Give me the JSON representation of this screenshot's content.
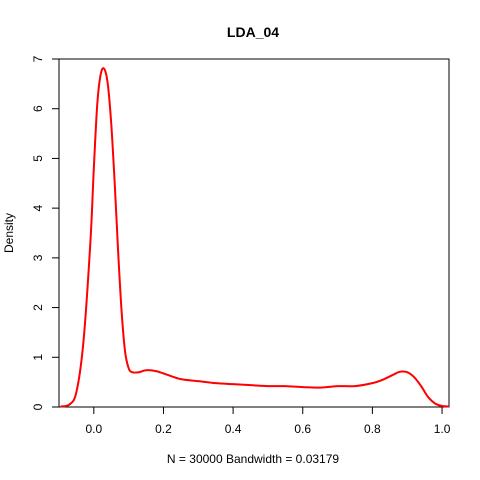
{
  "chart_data": {
    "type": "line",
    "title": "LDA_04",
    "xlabel": "N = 30000   Bandwidth = 0.03179",
    "ylabel": "Density",
    "xlim": [
      -0.1,
      1.02
    ],
    "ylim": [
      0,
      7
    ],
    "x_ticks": [
      0.0,
      0.2,
      0.4,
      0.6,
      0.8,
      1.0
    ],
    "x_tick_labels": [
      "0.0",
      "0.2",
      "0.4",
      "0.6",
      "0.8",
      "1.0"
    ],
    "y_ticks": [
      0,
      1,
      2,
      3,
      4,
      5,
      6,
      7
    ],
    "y_tick_labels": [
      "0",
      "1",
      "2",
      "3",
      "4",
      "5",
      "6",
      "7"
    ],
    "grid": false,
    "series": [
      {
        "color": "#ff0000",
        "x": [
          -0.095,
          -0.07,
          -0.05,
          -0.03,
          -0.01,
          0.0,
          0.01,
          0.02,
          0.03,
          0.04,
          0.05,
          0.06,
          0.07,
          0.08,
          0.09,
          0.1,
          0.11,
          0.13,
          0.15,
          0.18,
          0.21,
          0.25,
          0.3,
          0.35,
          0.4,
          0.45,
          0.5,
          0.55,
          0.6,
          0.65,
          0.7,
          0.75,
          0.8,
          0.83,
          0.86,
          0.88,
          0.9,
          0.92,
          0.94,
          0.96,
          0.98,
          1.0,
          1.02
        ],
        "y": [
          0.01,
          0.05,
          0.3,
          1.3,
          3.3,
          4.8,
          6.1,
          6.7,
          6.8,
          6.5,
          5.7,
          4.5,
          3.1,
          1.9,
          1.1,
          0.78,
          0.7,
          0.7,
          0.74,
          0.72,
          0.65,
          0.56,
          0.52,
          0.48,
          0.46,
          0.44,
          0.42,
          0.42,
          0.4,
          0.39,
          0.42,
          0.42,
          0.48,
          0.55,
          0.65,
          0.71,
          0.7,
          0.6,
          0.42,
          0.2,
          0.07,
          0.02,
          0.01
        ]
      }
    ]
  }
}
